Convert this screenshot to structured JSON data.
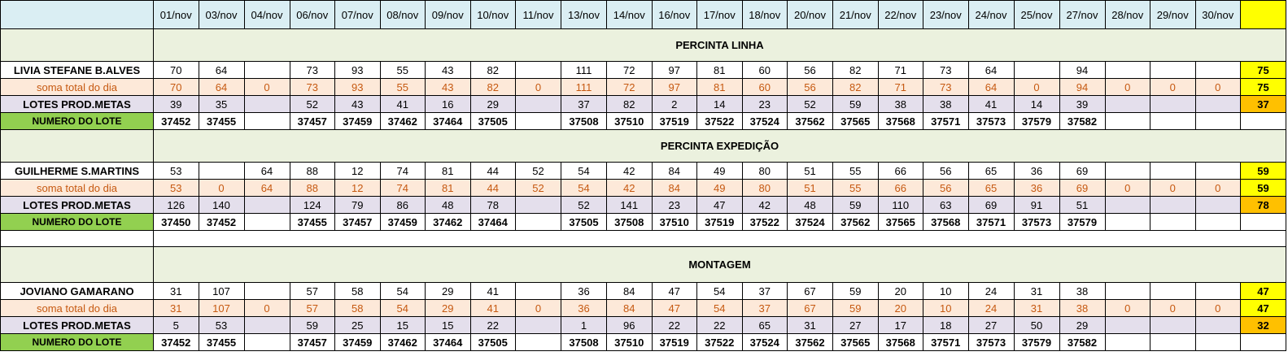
{
  "dates": [
    "01/nov",
    "03/nov",
    "04/nov",
    "06/nov",
    "07/nov",
    "08/nov",
    "09/nov",
    "10/nov",
    "11/nov",
    "13/nov",
    "14/nov",
    "16/nov",
    "17/nov",
    "18/nov",
    "20/nov",
    "21/nov",
    "22/nov",
    "23/nov",
    "24/nov",
    "25/nov",
    "27/nov",
    "28/nov",
    "29/nov",
    "30/nov"
  ],
  "sections": [
    {
      "title": "PERCINTA LINHA",
      "worker": {
        "name": "LIVIA STEFANE B.ALVES",
        "values": [
          "70",
          "64",
          "",
          "73",
          "93",
          "55",
          "43",
          "82",
          "",
          "111",
          "72",
          "97",
          "81",
          "60",
          "56",
          "82",
          "71",
          "73",
          "64",
          "",
          "94",
          "",
          "",
          ""
        ],
        "total": "75"
      },
      "soma": {
        "label": "soma total  do dia",
        "values": [
          "70",
          "64",
          "0",
          "73",
          "93",
          "55",
          "43",
          "82",
          "0",
          "111",
          "72",
          "97",
          "81",
          "60",
          "56",
          "82",
          "71",
          "73",
          "64",
          "0",
          "94",
          "0",
          "0",
          "0"
        ],
        "total": "75"
      },
      "lotes": {
        "label": "LOTES PROD.METAS",
        "values": [
          "39",
          "35",
          "",
          "52",
          "43",
          "41",
          "16",
          "29",
          "",
          "37",
          "82",
          "2",
          "14",
          "23",
          "52",
          "59",
          "38",
          "38",
          "41",
          "14",
          "39",
          "",
          "",
          ""
        ],
        "total": "37"
      },
      "numero": {
        "label": "NUMERO DO LOTE",
        "values": [
          "37452",
          "37455",
          "",
          "37457",
          "37459",
          "37462",
          "37464",
          "37505",
          "",
          "37508",
          "37510",
          "37519",
          "37522",
          "37524",
          "37562",
          "37565",
          "37568",
          "37571",
          "37573",
          "37579",
          "37582",
          "",
          "",
          ""
        ],
        "total": ""
      }
    },
    {
      "title": "PERCINTA EXPEDIÇÃO",
      "worker": {
        "name": "GUILHERME S.MARTINS",
        "values": [
          "53",
          "",
          "64",
          "88",
          "12",
          "74",
          "81",
          "44",
          "52",
          "54",
          "42",
          "84",
          "49",
          "80",
          "51",
          "55",
          "66",
          "56",
          "65",
          "36",
          "69",
          "",
          "",
          ""
        ],
        "total": "59"
      },
      "soma": {
        "label": "soma total  do dia",
        "values": [
          "53",
          "0",
          "64",
          "88",
          "12",
          "74",
          "81",
          "44",
          "52",
          "54",
          "42",
          "84",
          "49",
          "80",
          "51",
          "55",
          "66",
          "56",
          "65",
          "36",
          "69",
          "0",
          "0",
          "0"
        ],
        "total": "59"
      },
      "lotes": {
        "label": "LOTES PROD.METAS",
        "values": [
          "126",
          "140",
          "",
          "124",
          "79",
          "86",
          "48",
          "78",
          "",
          "52",
          "141",
          "23",
          "47",
          "42",
          "48",
          "59",
          "110",
          "63",
          "69",
          "91",
          "51",
          "",
          "",
          ""
        ],
        "total": "78"
      },
      "numero": {
        "label": "NUMERO DO LOTE",
        "values": [
          "37450",
          "37452",
          "",
          "37455",
          "37457",
          "37459",
          "37462",
          "37464",
          "",
          "37505",
          "37508",
          "37510",
          "37519",
          "37522",
          "37524",
          "37562",
          "37565",
          "37568",
          "37571",
          "37573",
          "37579",
          "",
          "",
          ""
        ],
        "total": ""
      }
    },
    {
      "title": "MONTAGEM",
      "worker": {
        "name": "JOVIANO GAMARANO",
        "values": [
          "31",
          "107",
          "",
          "57",
          "58",
          "54",
          "29",
          "41",
          "",
          "36",
          "84",
          "47",
          "54",
          "37",
          "67",
          "59",
          "20",
          "10",
          "24",
          "31",
          "38",
          "",
          "",
          ""
        ],
        "total": "47"
      },
      "soma": {
        "label": "soma total  do dia",
        "values": [
          "31",
          "107",
          "0",
          "57",
          "58",
          "54",
          "29",
          "41",
          "0",
          "36",
          "84",
          "47",
          "54",
          "37",
          "67",
          "59",
          "20",
          "10",
          "24",
          "31",
          "38",
          "0",
          "0",
          "0"
        ],
        "total": "47"
      },
      "lotes": {
        "label": "LOTES PROD.METAS",
        "values": [
          "5",
          "53",
          "",
          "59",
          "25",
          "15",
          "15",
          "22",
          "",
          "1",
          "96",
          "22",
          "22",
          "65",
          "31",
          "27",
          "17",
          "18",
          "27",
          "50",
          "29",
          "",
          "",
          ""
        ],
        "total": "32"
      },
      "numero": {
        "label": "NUMERO DO LOTE",
        "values": [
          "37452",
          "37455",
          "",
          "37457",
          "37459",
          "37462",
          "37464",
          "37505",
          "",
          "37508",
          "37510",
          "37519",
          "37522",
          "37524",
          "37562",
          "37565",
          "37568",
          "37571",
          "37573",
          "37579",
          "37582",
          "",
          "",
          ""
        ],
        "total": ""
      }
    }
  ],
  "colors": {
    "total_header": "#ffff00",
    "total_worker": "#ffff00",
    "total_soma": "#ffff00",
    "total_lotes": "#ffc000",
    "numero_label": "#92d050",
    "soma_text": "#c65911"
  }
}
